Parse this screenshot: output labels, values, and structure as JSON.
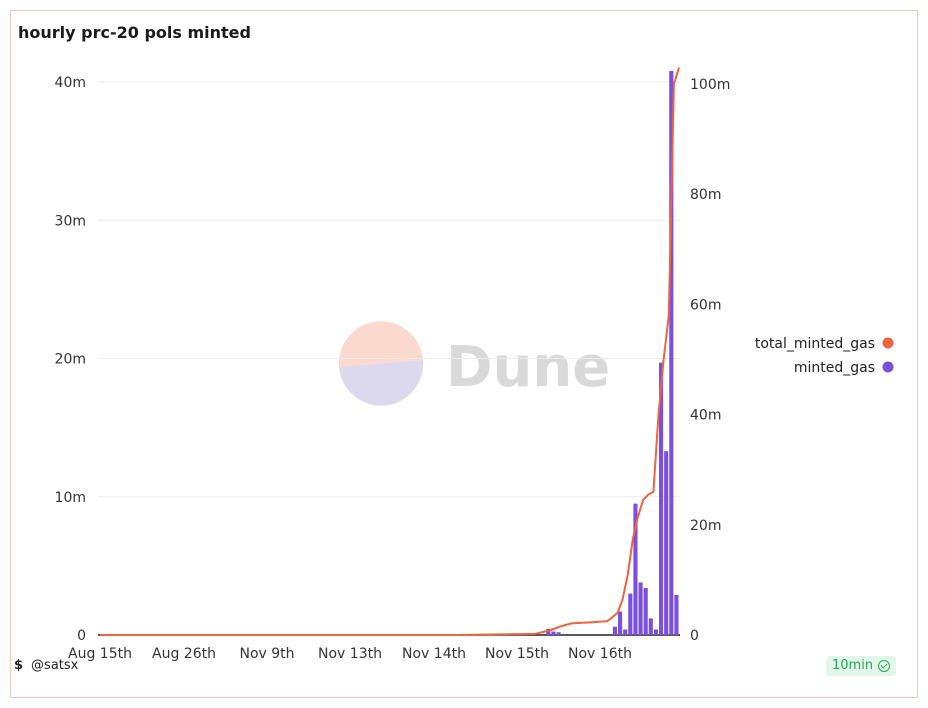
{
  "title": "hourly prc-20 pols minted",
  "watermark": "Dune",
  "footer": {
    "author": "@satsx",
    "refresh": "10min"
  },
  "colors": {
    "bars": "#7b4fe0",
    "line": "#f0633c",
    "grid": "#ececec"
  },
  "chart_data": {
    "type": "bar",
    "x_tick_labels": [
      "Aug 15th",
      "Aug 26th",
      "Nov 9th",
      "Nov 13th",
      "Nov 14th",
      "Nov 15th",
      "Nov 16th"
    ],
    "y_left": {
      "ticks": [
        "0",
        "10m",
        "20m",
        "30m",
        "40m"
      ],
      "range": [
        0,
        40000000
      ]
    },
    "y_right": {
      "ticks": [
        "0",
        "20m",
        "40m",
        "60m",
        "80m",
        "100m"
      ],
      "range": [
        0,
        100000000
      ]
    },
    "legend": {
      "position": "right",
      "entries": [
        "total_minted_gas",
        "minted_gas"
      ]
    },
    "grid": true,
    "series": [
      {
        "name": "minted_gas",
        "axis": "left",
        "type": "bar",
        "values": [
          0,
          0,
          0,
          0,
          0,
          0,
          0,
          0,
          0,
          0,
          0,
          0,
          0,
          0,
          0,
          0,
          0,
          0,
          0,
          0,
          0,
          0,
          0,
          0,
          0,
          0,
          0,
          0,
          0,
          0,
          0,
          0,
          0,
          0,
          0,
          0,
          0,
          0,
          0,
          0,
          0,
          0,
          0,
          0,
          0,
          0,
          0,
          0,
          0,
          0,
          0,
          0,
          0,
          0,
          0,
          0,
          0,
          0,
          0,
          0,
          0,
          0,
          0,
          0,
          0,
          0,
          0,
          0,
          0,
          0,
          0,
          0,
          0,
          0,
          0,
          0,
          0,
          0,
          0,
          0,
          0,
          0,
          0,
          0,
          0,
          0,
          0,
          450000,
          250000,
          200000,
          0,
          0,
          0,
          0,
          0,
          0,
          0,
          0,
          0,
          0,
          600000,
          1700000,
          400000,
          3000000,
          9500000,
          3800000,
          3400000,
          1200000,
          400000,
          19700000,
          13300000,
          40800000,
          2900000
        ]
      },
      {
        "name": "total_minted_gas",
        "axis": "right",
        "type": "line",
        "points": [
          [
            0,
            0
          ],
          [
            70,
            0
          ],
          [
            85,
            0.2
          ],
          [
            88,
            0.9
          ],
          [
            90,
            1.6
          ],
          [
            92,
            2.1
          ],
          [
            96,
            2.3
          ],
          [
            99,
            2.5
          ],
          [
            101,
            4.0
          ],
          [
            102,
            6.5
          ],
          [
            103,
            11.0
          ],
          [
            104,
            17.5
          ],
          [
            105,
            21.5
          ],
          [
            106,
            24.5
          ],
          [
            107,
            25.5
          ],
          [
            108,
            26.0
          ],
          [
            109,
            40.0
          ],
          [
            110,
            50.0
          ],
          [
            111,
            58.0
          ],
          [
            112,
            100.0
          ],
          [
            113,
            103.0
          ]
        ]
      }
    ]
  }
}
